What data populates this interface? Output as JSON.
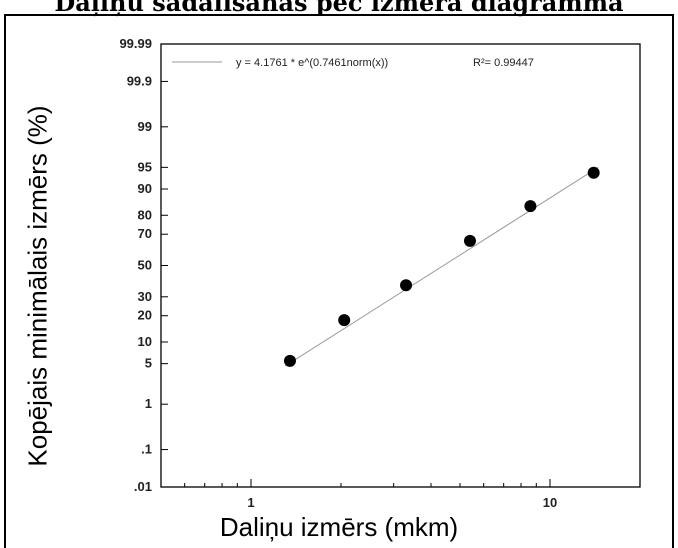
{
  "chart_data": {
    "type": "scatter",
    "title": "Daļiņu sadalīšanas pēc izmēra diagramma",
    "xlabel": "Daliņu izmērs (mkm)",
    "ylabel": "Kopējais minimālais izmērs (%)",
    "x_scale": "log",
    "y_scale": "probability",
    "xlim": [
      0.5,
      20
    ],
    "ylim": [
      0.01,
      99.99
    ],
    "x_ticks": [
      {
        "value": 1,
        "label": "1"
      },
      {
        "value": 10,
        "label": "10"
      }
    ],
    "y_ticks": [
      {
        "value": 0.01,
        "label": ".01"
      },
      {
        "value": 0.1,
        "label": ".1"
      },
      {
        "value": 1,
        "label": "1"
      },
      {
        "value": 5,
        "label": "5"
      },
      {
        "value": 10,
        "label": "10"
      },
      {
        "value": 20,
        "label": "20"
      },
      {
        "value": 30,
        "label": "30"
      },
      {
        "value": 50,
        "label": "50"
      },
      {
        "value": 70,
        "label": "70"
      },
      {
        "value": 80,
        "label": "80"
      },
      {
        "value": 90,
        "label": "90"
      },
      {
        "value": 95,
        "label": "95"
      },
      {
        "value": 99,
        "label": "99"
      },
      {
        "value": 99.9,
        "label": "99.9"
      },
      {
        "value": 99.99,
        "label": "99.99"
      }
    ],
    "points": [
      {
        "x": 1.35,
        "y": 5.5
      },
      {
        "x": 2.05,
        "y": 18
      },
      {
        "x": 3.3,
        "y": 37
      },
      {
        "x": 5.4,
        "y": 66
      },
      {
        "x": 8.6,
        "y": 84
      },
      {
        "x": 14,
        "y": 94
      }
    ],
    "fit_line": {
      "x_start": 1.3,
      "y_start": 4.6,
      "x_end": 14.5,
      "y_end": 95
    },
    "legend": {
      "equation": "y = 4.1761 * e^(0.7461norm(x))",
      "r_squared": "R²= 0.99447",
      "position": "top"
    },
    "grid": false,
    "colors": {
      "points": "#000000",
      "fit_line": "#999999",
      "axes": "#000000"
    }
  }
}
